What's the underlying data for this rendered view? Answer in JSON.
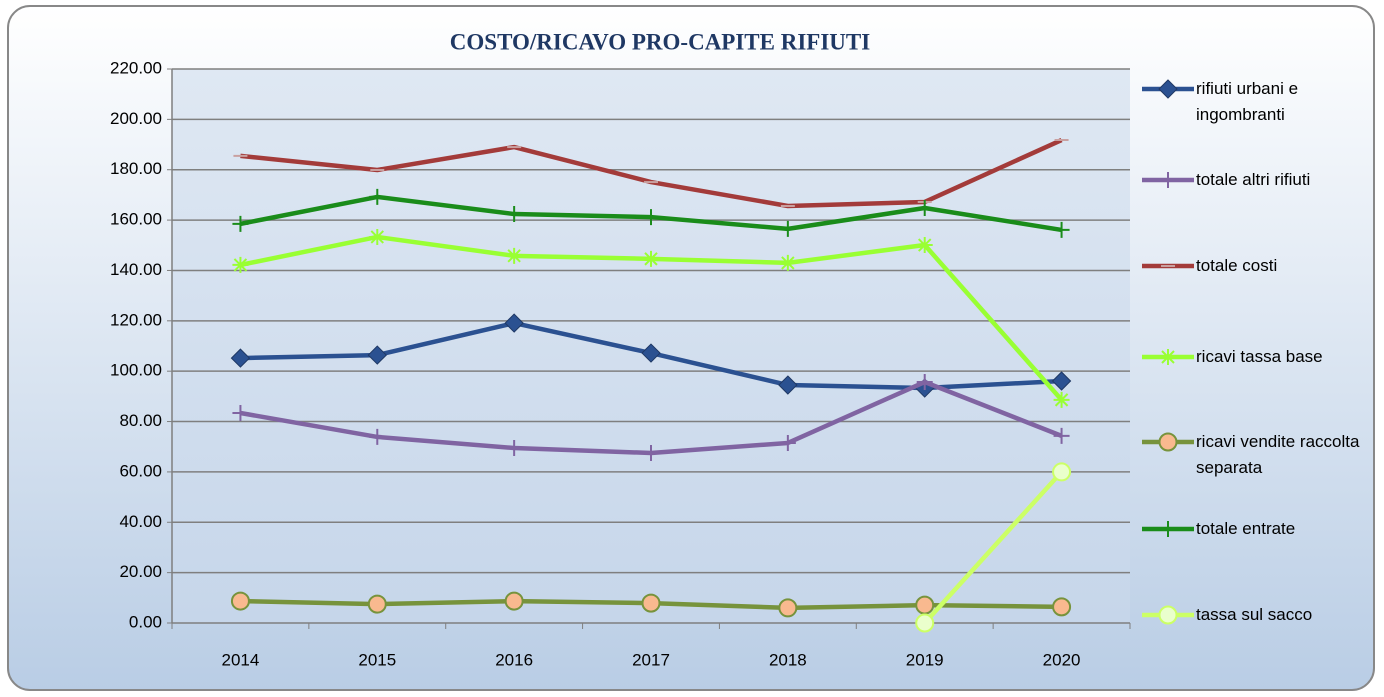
{
  "chart_data": {
    "type": "line",
    "title": "COSTO/RICAVO PRO-CAPITE RIFIUTI",
    "categories": [
      "2014",
      "2015",
      "2016",
      "2017",
      "2018",
      "2019",
      "2020"
    ],
    "ylim": [
      0,
      220
    ],
    "yticks": [
      {
        "value": 0,
        "label": "0.00"
      },
      {
        "value": 20,
        "label": "20.00"
      },
      {
        "value": 40,
        "label": "40.00"
      },
      {
        "value": 60,
        "label": "60.00"
      },
      {
        "value": 80,
        "label": "80.00"
      },
      {
        "value": 100,
        "label": "100.00"
      },
      {
        "value": 120,
        "label": "120.00"
      },
      {
        "value": 140,
        "label": "140.00"
      },
      {
        "value": 160,
        "label": "160.00"
      },
      {
        "value": 180,
        "label": "180.00"
      },
      {
        "value": 200,
        "label": "200.00"
      },
      {
        "value": 220,
        "label": "220.00"
      }
    ],
    "grid": true,
    "legend": "right",
    "series": [
      {
        "name": "rifiuti urbani e ingombranti",
        "color": "#2b5191",
        "marker": "diamond",
        "values": [
          105.2,
          106.4,
          119.1,
          107.2,
          94.5,
          93.3,
          96.1
        ]
      },
      {
        "name": "totale altri rifiuti",
        "color": "#8064a2",
        "marker": "plus",
        "values": [
          83.4,
          73.9,
          69.5,
          67.5,
          71.5,
          95.7,
          74.3
        ]
      },
      {
        "name": "totale costi",
        "color": "#a33b3a",
        "marker": "dash",
        "values": [
          185.5,
          179.9,
          189.0,
          175.1,
          165.6,
          167.2,
          191.8
        ]
      },
      {
        "name": "ricavi tassa base",
        "color": "#99ff33",
        "marker": "star",
        "values": [
          142.2,
          153.3,
          145.8,
          144.6,
          143.0,
          150.1,
          88.6
        ]
      },
      {
        "name": "ricavi vendite raccolta separata",
        "color": "#77933c",
        "marker": "circle",
        "markerFill": "#f9b98f",
        "values": [
          8.7,
          7.5,
          8.7,
          7.9,
          6.0,
          7.1,
          6.4
        ]
      },
      {
        "name": "totale entrate",
        "color": "#1a8c1a",
        "marker": "plus",
        "values": [
          158.5,
          169.2,
          162.4,
          161.2,
          156.5,
          164.8,
          156.1
        ]
      },
      {
        "name": "tassa sul sacco",
        "color": "#ccff66",
        "marker": "circle",
        "markerFill": "#eaffcc",
        "values": [
          null,
          null,
          null,
          null,
          null,
          0,
          60
        ]
      }
    ]
  }
}
